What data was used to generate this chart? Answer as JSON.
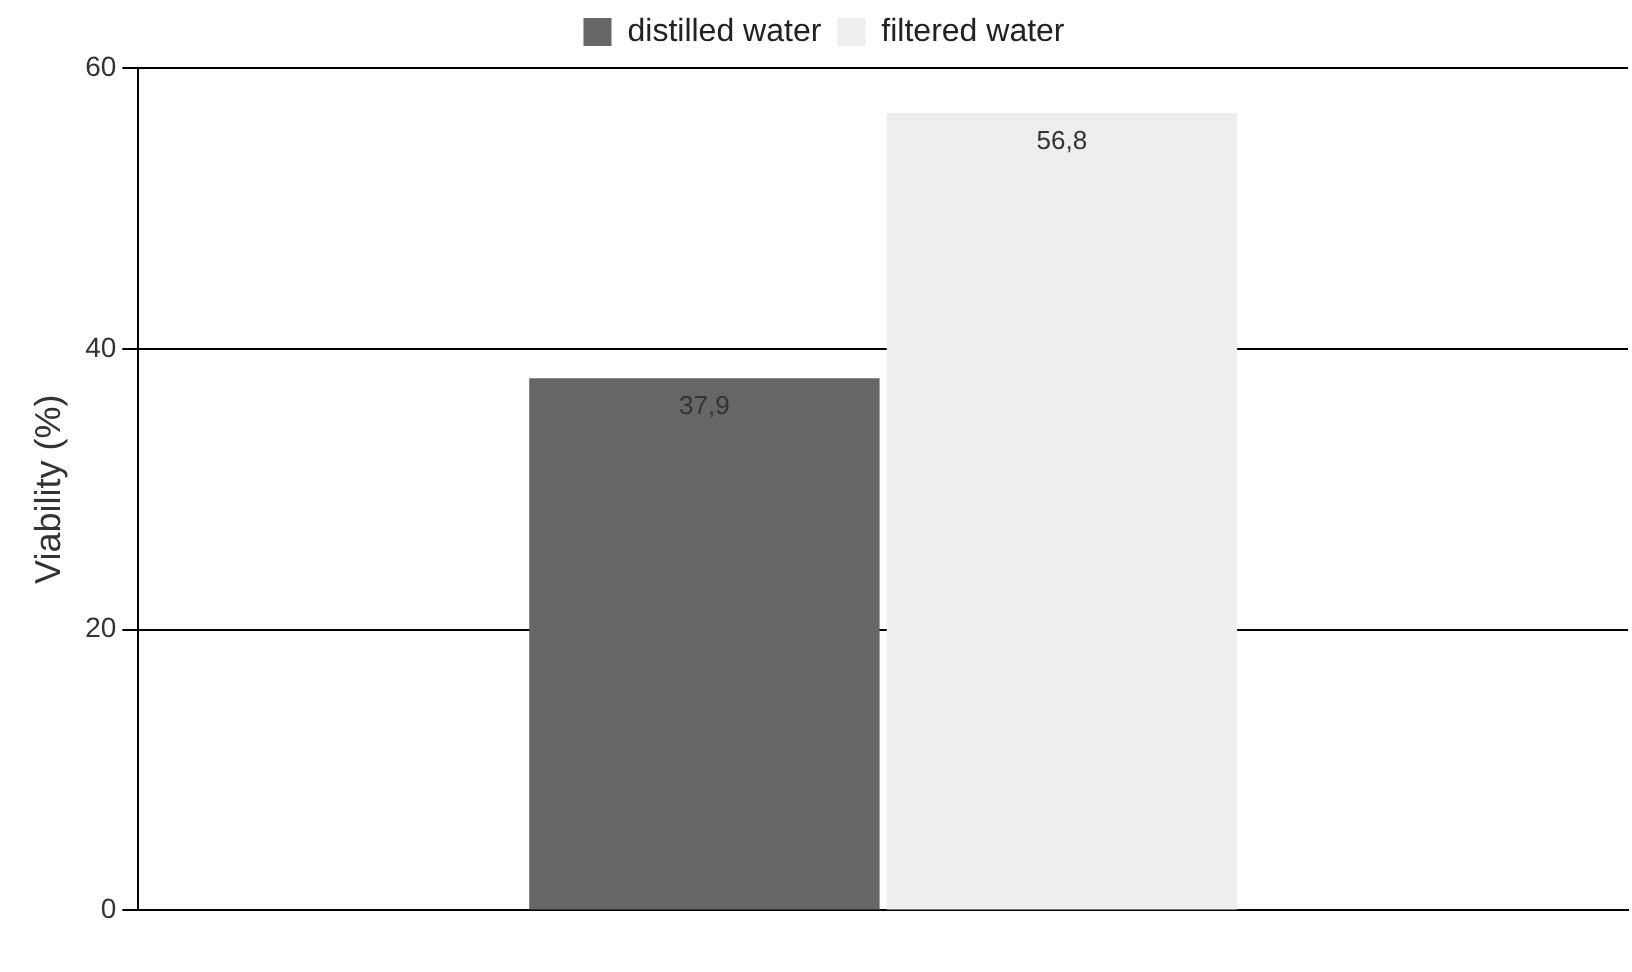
{
  "chart_data": {
    "type": "bar",
    "ylabel": "Viability (%)",
    "categories": [
      null
    ],
    "series": [
      {
        "name": "distilled water",
        "color": "#666666",
        "values": [
          37.9
        ],
        "value_labels": [
          "37,9"
        ]
      },
      {
        "name": "filtered water",
        "color": "#eeeeee",
        "values": [
          56.8
        ],
        "value_labels": [
          "56,8"
        ]
      }
    ],
    "ylim": [
      0,
      60
    ],
    "yticks": [
      0,
      20,
      40,
      60
    ],
    "grid": "y",
    "legend": "top"
  }
}
